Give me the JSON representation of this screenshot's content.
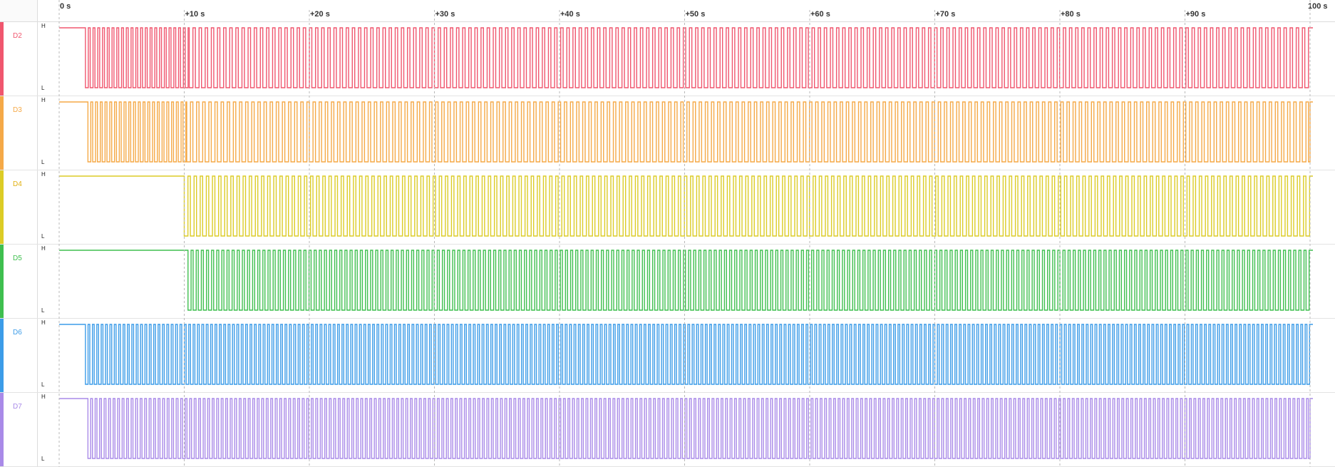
{
  "ruler": {
    "ticks": [
      "0 s",
      "+10 s",
      "+20 s",
      "+30 s",
      "+40 s",
      "+50 s",
      "+60 s",
      "+70 s",
      "+80 s",
      "+90 s",
      "100 s"
    ]
  },
  "level_labels": {
    "high": "H",
    "low": "L"
  },
  "channels": [
    {
      "name": "D2",
      "color": "#f0566e",
      "label_color": "#f0566e",
      "start_s": 2.1,
      "segments": [
        {
          "from": 2.1,
          "to": 10.4,
          "period": 0.38
        },
        {
          "from": 10.4,
          "to": 100,
          "period": 0.49
        }
      ]
    },
    {
      "name": "D3",
      "color": "#f5a947",
      "label_color": "#f5a947",
      "start_s": 2.3,
      "segments": [
        {
          "from": 2.3,
          "to": 10.2,
          "period": 0.38
        },
        {
          "from": 10.2,
          "to": 100,
          "period": 0.49
        }
      ]
    },
    {
      "name": "D4",
      "color": "#dccc26",
      "label_color": "#e0b010",
      "start_s": 10.0,
      "segments": [
        {
          "from": 10.0,
          "to": 100,
          "period": 0.49
        }
      ]
    },
    {
      "name": "D5",
      "color": "#3fbf4f",
      "label_color": "#3fbf4f",
      "start_s": 10.3,
      "segments": [
        {
          "from": 10.3,
          "to": 100,
          "period": 0.41
        }
      ]
    },
    {
      "name": "D6",
      "color": "#3c9ce8",
      "label_color": "#3c9ce8",
      "start_s": 2.1,
      "segments": [
        {
          "from": 2.1,
          "to": 100,
          "period": 0.35
        }
      ]
    },
    {
      "name": "D7",
      "color": "#a98ae8",
      "label_color": "#a98ae8",
      "start_s": 2.3,
      "segments": [
        {
          "from": 2.3,
          "to": 100,
          "period": 0.36
        }
      ]
    }
  ]
}
